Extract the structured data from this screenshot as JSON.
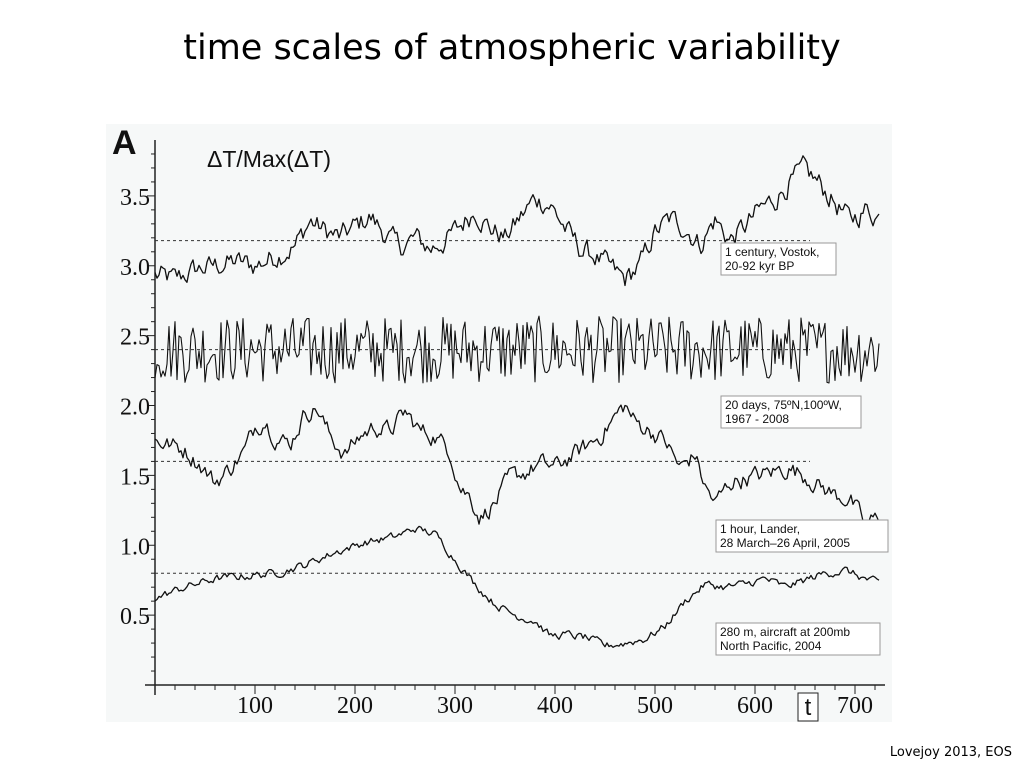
{
  "slide": {
    "title": "time scales of atmospheric variability",
    "citation": "Lovejoy 2013, EOS"
  },
  "chart_data": {
    "type": "line",
    "panel_label": "A",
    "title": "ΔT/Max(ΔT)",
    "xlabel": "t",
    "ylabel": "",
    "xlim": [
      0,
      730
    ],
    "ylim": [
      0.0,
      3.9
    ],
    "x_ticks": [
      100,
      200,
      300,
      400,
      500,
      600,
      700
    ],
    "y_ticks": [
      "3.5",
      "3.0",
      "2.5",
      "2.0",
      "1.5",
      "1.0",
      "0.5"
    ],
    "y_tick_values": [
      3.5,
      3.0,
      2.5,
      2.0,
      1.5,
      1.0,
      0.5
    ],
    "grid": false,
    "legend": "none",
    "series": [
      {
        "label_lines": [
          "1 century, Vostok,",
          "20-92 kyr BP"
        ],
        "mean": 3.18,
        "points": [
          [
            0,
            2.93
          ],
          [
            20,
            2.9
          ],
          [
            40,
            2.97
          ],
          [
            60,
            3.0
          ],
          [
            80,
            3.03
          ],
          [
            100,
            3.0
          ],
          [
            120,
            3.07
          ],
          [
            140,
            3.14
          ],
          [
            155,
            3.32
          ],
          [
            170,
            3.25
          ],
          [
            185,
            3.2
          ],
          [
            200,
            3.28
          ],
          [
            215,
            3.35
          ],
          [
            230,
            3.23
          ],
          [
            245,
            3.13
          ],
          [
            260,
            3.2
          ],
          [
            275,
            3.12
          ],
          [
            290,
            3.18
          ],
          [
            305,
            3.28
          ],
          [
            320,
            3.4
          ],
          [
            335,
            3.27
          ],
          [
            350,
            3.2
          ],
          [
            365,
            3.34
          ],
          [
            380,
            3.48
          ],
          [
            395,
            3.44
          ],
          [
            410,
            3.27
          ],
          [
            425,
            3.12
          ],
          [
            440,
            3.07
          ],
          [
            455,
            2.98
          ],
          [
            470,
            2.9
          ],
          [
            485,
            3.0
          ],
          [
            500,
            3.24
          ],
          [
            515,
            3.33
          ],
          [
            530,
            3.28
          ],
          [
            545,
            3.15
          ],
          [
            560,
            3.33
          ],
          [
            575,
            3.18
          ],
          [
            590,
            3.28
          ],
          [
            605,
            3.4
          ],
          [
            620,
            3.48
          ],
          [
            635,
            3.6
          ],
          [
            650,
            3.68
          ],
          [
            665,
            3.58
          ],
          [
            680,
            3.45
          ],
          [
            695,
            3.32
          ],
          [
            710,
            3.4
          ],
          [
            725,
            3.35
          ]
        ],
        "noise": 0.07
      },
      {
        "label_lines": [
          "20 days, 75ºN,100ºW,",
          "1967 - 2008"
        ],
        "mean": 2.4,
        "points": [
          [
            0,
            2.4
          ],
          [
            730,
            2.4
          ]
        ],
        "noise": 0.24
      },
      {
        "label_lines": [
          "1 hour,  Lander,",
          "28 March–26 April, 2005"
        ],
        "mean": 1.6,
        "points": [
          [
            0,
            1.75
          ],
          [
            15,
            1.72
          ],
          [
            30,
            1.68
          ],
          [
            45,
            1.58
          ],
          [
            60,
            1.45
          ],
          [
            75,
            1.55
          ],
          [
            90,
            1.68
          ],
          [
            100,
            1.85
          ],
          [
            110,
            1.9
          ],
          [
            120,
            1.78
          ],
          [
            135,
            1.72
          ],
          [
            150,
            1.95
          ],
          [
            162,
            1.98
          ],
          [
            175,
            1.78
          ],
          [
            190,
            1.65
          ],
          [
            205,
            1.78
          ],
          [
            220,
            1.85
          ],
          [
            235,
            1.82
          ],
          [
            250,
            1.95
          ],
          [
            265,
            1.82
          ],
          [
            280,
            1.78
          ],
          [
            295,
            1.68
          ],
          [
            305,
            1.42
          ],
          [
            315,
            1.35
          ],
          [
            325,
            1.2
          ],
          [
            340,
            1.3
          ],
          [
            355,
            1.48
          ],
          [
            370,
            1.52
          ],
          [
            385,
            1.58
          ],
          [
            400,
            1.56
          ],
          [
            415,
            1.63
          ],
          [
            430,
            1.7
          ],
          [
            445,
            1.78
          ],
          [
            460,
            1.92
          ],
          [
            470,
            2.0
          ],
          [
            480,
            1.88
          ],
          [
            495,
            1.82
          ],
          [
            510,
            1.75
          ],
          [
            525,
            1.55
          ],
          [
            540,
            1.65
          ],
          [
            550,
            1.42
          ],
          [
            560,
            1.3
          ],
          [
            575,
            1.45
          ],
          [
            590,
            1.48
          ],
          [
            605,
            1.5
          ],
          [
            620,
            1.53
          ],
          [
            635,
            1.55
          ],
          [
            650,
            1.5
          ],
          [
            665,
            1.42
          ],
          [
            680,
            1.36
          ],
          [
            695,
            1.33
          ],
          [
            710,
            1.15
          ],
          [
            725,
            1.2
          ]
        ],
        "noise": 0.055
      },
      {
        "label_lines": [
          "280 m, aircraft at 200mb",
          "North Pacific, 2004"
        ],
        "mean": 0.8,
        "points": [
          [
            0,
            0.62
          ],
          [
            30,
            0.7
          ],
          [
            60,
            0.76
          ],
          [
            90,
            0.78
          ],
          [
            120,
            0.8
          ],
          [
            150,
            0.86
          ],
          [
            180,
            0.95
          ],
          [
            210,
            1.02
          ],
          [
            240,
            1.06
          ],
          [
            260,
            1.12
          ],
          [
            280,
            1.08
          ],
          [
            300,
            0.9
          ],
          [
            320,
            0.72
          ],
          [
            340,
            0.58
          ],
          [
            360,
            0.5
          ],
          [
            380,
            0.46
          ],
          [
            395,
            0.35
          ],
          [
            410,
            0.36
          ],
          [
            430,
            0.34
          ],
          [
            450,
            0.28
          ],
          [
            470,
            0.3
          ],
          [
            490,
            0.33
          ],
          [
            510,
            0.42
          ],
          [
            530,
            0.6
          ],
          [
            550,
            0.72
          ],
          [
            570,
            0.7
          ],
          [
            590,
            0.72
          ],
          [
            610,
            0.76
          ],
          [
            630,
            0.7
          ],
          [
            650,
            0.75
          ],
          [
            670,
            0.8
          ],
          [
            690,
            0.82
          ],
          [
            710,
            0.76
          ],
          [
            725,
            0.72
          ]
        ],
        "noise": 0.025
      }
    ]
  }
}
